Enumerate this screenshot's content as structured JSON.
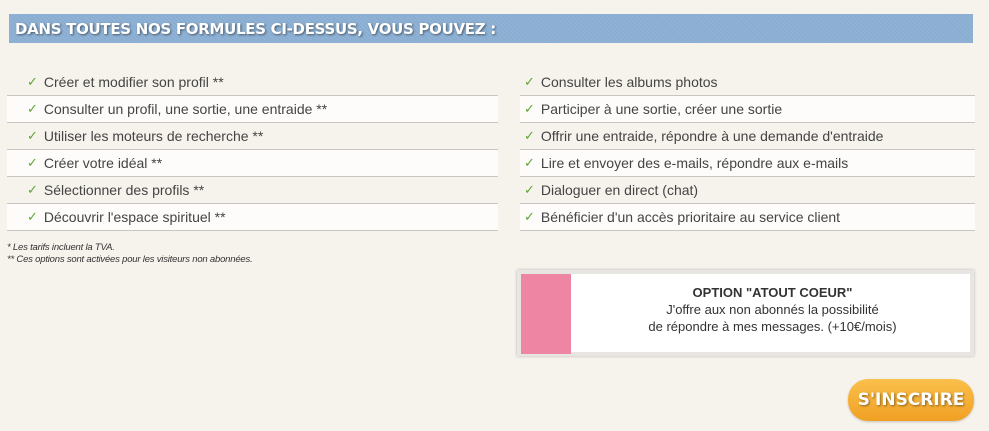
{
  "banner": {
    "title": "DANS TOUTES NOS FORMULES CI-DESSUS, VOUS POUVEZ :"
  },
  "features_left": [
    "Créer et modifier son profil **",
    "Consulter un profil, une sortie, une entraide **",
    "Utiliser les moteurs de recherche **",
    "Créer votre idéal **",
    "Sélectionner des profils **",
    "Découvrir l'espace spirituel **"
  ],
  "features_right": [
    "Consulter les albums photos",
    "Participer à une sortie, créer une sortie",
    "Offrir une entraide, répondre à une demande d'entraide",
    "Lire et envoyer des e-mails, répondre aux e-mails",
    "Dialoguer en direct (chat)",
    "Bénéficier d'un accès prioritaire au service client"
  ],
  "check_icon": "✓",
  "notes": [
    "* Les tarifs incluent la TVA.",
    "** Ces options sont activées pour les visiteurs non abonnées."
  ],
  "option": {
    "title": "OPTION \"ATOUT COEUR\"",
    "line1": "J'offre aux non abonnés la possibilité",
    "line2": "de répondre à mes messages. (+10€/mois)",
    "color": "#ee85a2"
  },
  "signup_button": "S'INSCRIRE"
}
